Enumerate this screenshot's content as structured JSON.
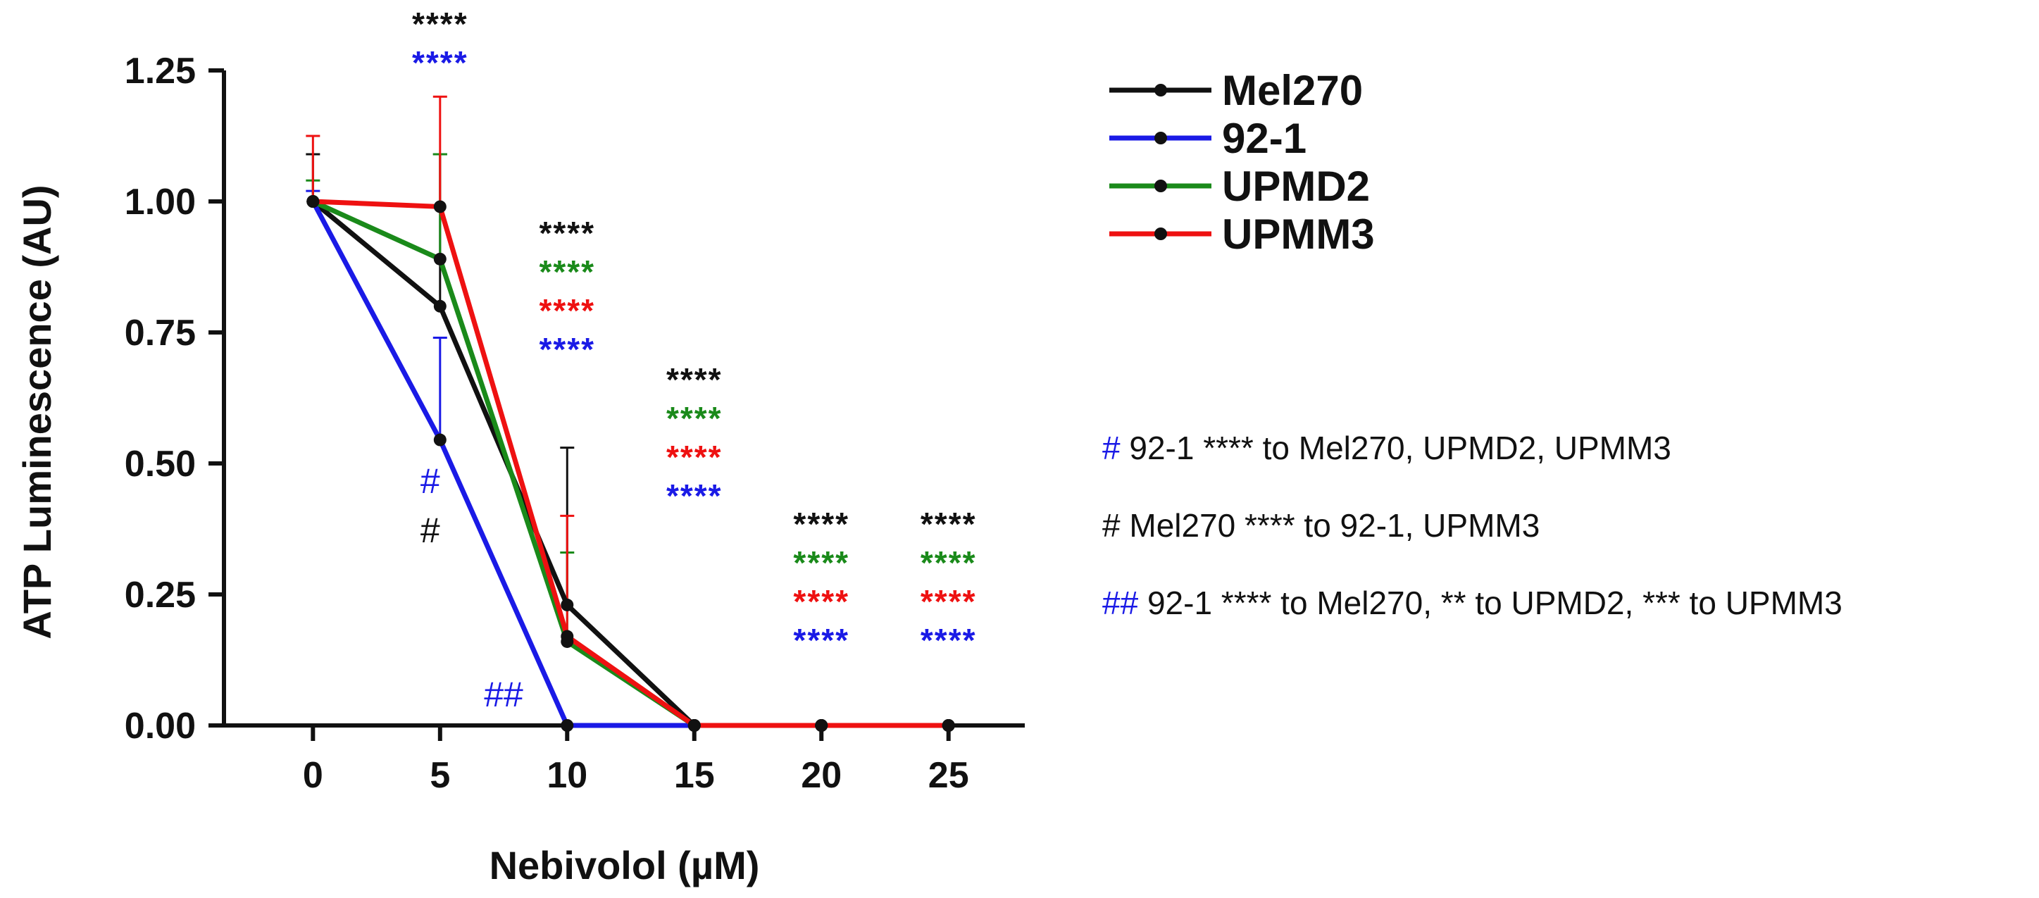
{
  "chart_data": {
    "type": "line",
    "xlabel": "Nebivolol (µM)",
    "ylabel": "ATP Luminescence (AU)",
    "x": [
      0,
      5,
      10,
      15,
      20,
      25
    ],
    "x_tick_labels": [
      "0",
      "5",
      "10",
      "15",
      "20",
      "25"
    ],
    "xlim": [
      -3.5,
      28
    ],
    "ylim": [
      0,
      1.25
    ],
    "y_ticks": [
      0,
      0.25,
      0.5,
      0.75,
      1.0,
      1.25
    ],
    "y_tick_labels": [
      "0.00",
      "0.25",
      "0.50",
      "0.75",
      "1.00",
      "1.25"
    ],
    "series": [
      {
        "name": "Mel270",
        "color": "#111111",
        "values": [
          1.0,
          0.8,
          0.23,
          0.0,
          0.0,
          0.0
        ],
        "err": [
          0.09,
          0.29,
          0.3,
          0,
          0,
          0
        ]
      },
      {
        "name": "92-1",
        "color": "#1a1ae6",
        "values": [
          1.0,
          0.545,
          0.0,
          0.0,
          0.0,
          0.0
        ],
        "err": [
          0.02,
          0.195,
          0,
          0,
          0,
          0
        ]
      },
      {
        "name": "UPMD2",
        "color": "#1a8a1a",
        "values": [
          1.0,
          0.89,
          0.16,
          0.0,
          0.0,
          0.0
        ],
        "err": [
          0.04,
          0.2,
          0.17,
          0,
          0,
          0
        ]
      },
      {
        "name": "UPMM3",
        "color": "#ee1111",
        "values": [
          1.0,
          0.99,
          0.17,
          0.0,
          0.0,
          0.0
        ],
        "err": [
          0.125,
          0.21,
          0.23,
          0,
          0,
          0
        ]
      }
    ],
    "significance": [
      {
        "x": 5,
        "rows": [
          {
            "text": "****",
            "color": "#111111"
          },
          {
            "text": "****",
            "color": "#1a1ae6"
          }
        ]
      },
      {
        "x": 10,
        "rows": [
          {
            "text": "****",
            "color": "#111111"
          },
          {
            "text": "****",
            "color": "#1a8a1a"
          },
          {
            "text": "****",
            "color": "#ee1111"
          },
          {
            "text": "****",
            "color": "#1a1ae6"
          }
        ]
      },
      {
        "x": 15,
        "rows": [
          {
            "text": "****",
            "color": "#111111"
          },
          {
            "text": "****",
            "color": "#1a8a1a"
          },
          {
            "text": "****",
            "color": "#ee1111"
          },
          {
            "text": "****",
            "color": "#1a1ae6"
          }
        ]
      },
      {
        "x": 20,
        "rows": [
          {
            "text": "****",
            "color": "#111111"
          },
          {
            "text": "****",
            "color": "#1a8a1a"
          },
          {
            "text": "****",
            "color": "#ee1111"
          },
          {
            "text": "****",
            "color": "#1a1ae6"
          }
        ]
      },
      {
        "x": 25,
        "rows": [
          {
            "text": "****",
            "color": "#111111"
          },
          {
            "text": "****",
            "color": "#1a8a1a"
          },
          {
            "text": "****",
            "color": "#ee1111"
          },
          {
            "text": "****",
            "color": "#1a1ae6"
          }
        ]
      }
    ],
    "markers": [
      {
        "text": "#",
        "color": "#1a1ae6",
        "x": 5
      },
      {
        "text": "#",
        "color": "#111111",
        "x": 5
      },
      {
        "text": "##",
        "color": "#1a1ae6",
        "x": 7.5
      }
    ],
    "notes": [
      {
        "mark": "#",
        "mark_color": "#1a1ae6",
        "text": "92-1 **** to Mel270, UPMD2, UPMM3"
      },
      {
        "mark": "#",
        "mark_color": "#111111",
        "text": "Mel270 **** to 92-1, UPMM3"
      },
      {
        "mark": "##",
        "mark_color": "#1a1ae6",
        "text": "92-1 **** to Mel270, ** to UPMD2, *** to UPMM3"
      }
    ]
  }
}
